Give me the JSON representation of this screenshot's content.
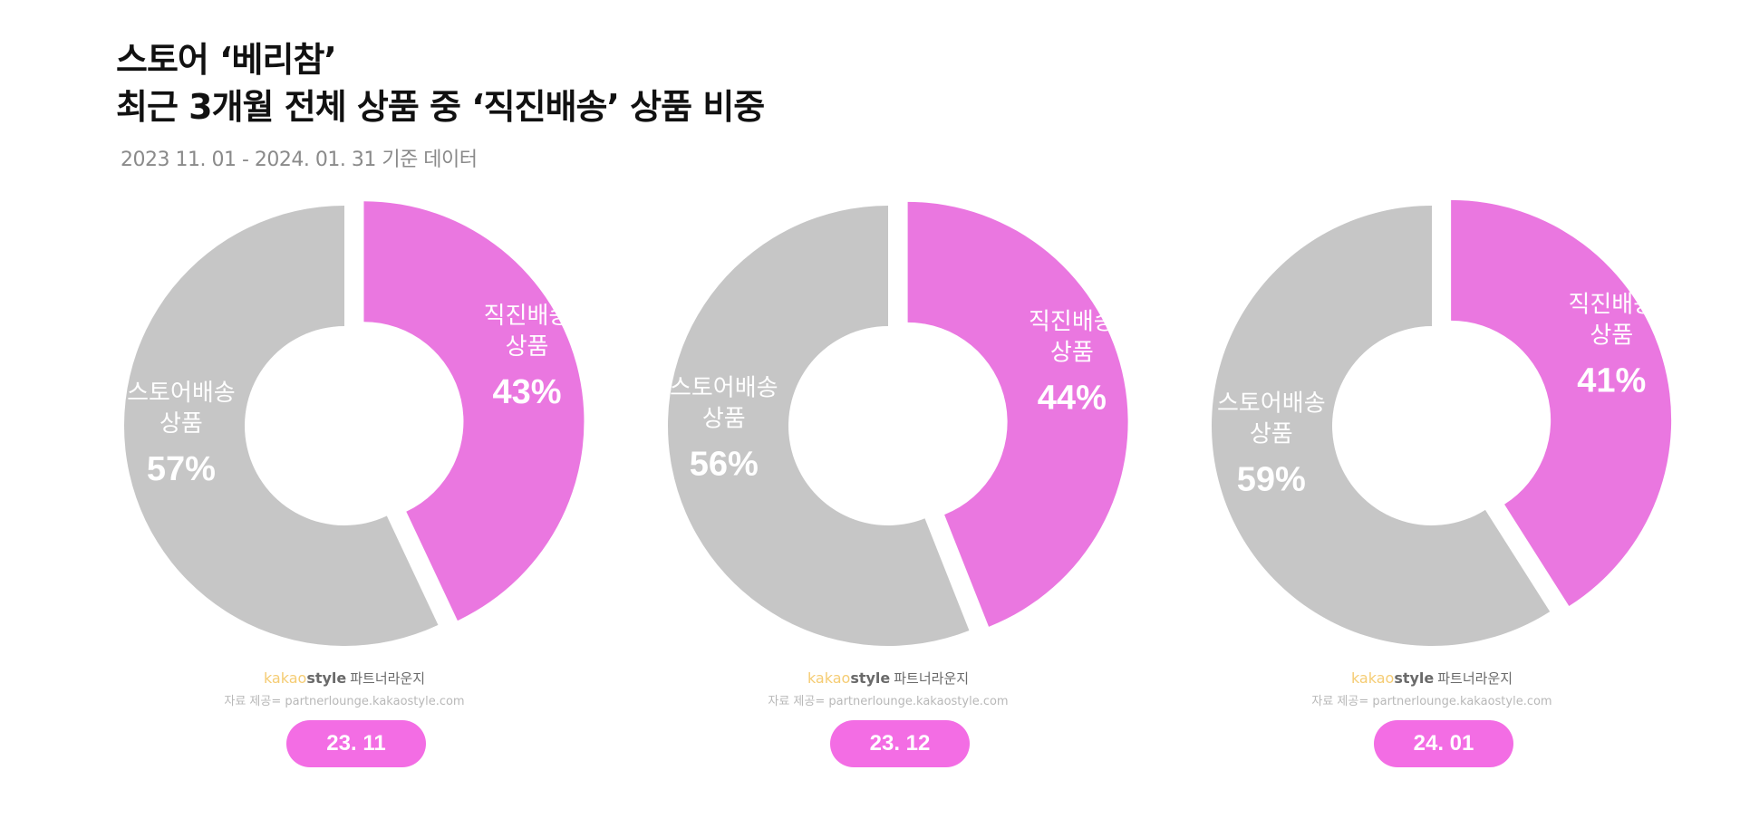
{
  "title": {
    "line1": "스토어 ‘베리참’",
    "line2": "최근 3개월 전체 상품 중 ‘직진배송’ 상품 비중"
  },
  "subtitle": "2023 11. 01 - 2024. 01. 31 기준 데이터",
  "colors": {
    "direct": "#ea77e0",
    "store": "#c6c6c6",
    "pill": "#f36de4"
  },
  "footer": {
    "brand_kakao": "kakao",
    "brand_style": "style",
    "brand_lounge": "파트너라운지",
    "source": "자료 제공= partnerlounge.kakaostyle.com"
  },
  "chart_data": [
    {
      "type": "pie",
      "period": "23. 11",
      "slices": [
        {
          "label_line1": "직진배송",
          "label_line2": "상품",
          "value": 43,
          "value_label": "43%",
          "color": "#ea77e0"
        },
        {
          "label_line1": "스토어배송",
          "label_line2": "상품",
          "value": 57,
          "value_label": "57%",
          "color": "#c6c6c6"
        }
      ]
    },
    {
      "type": "pie",
      "period": "23. 12",
      "slices": [
        {
          "label_line1": "직진배송",
          "label_line2": "상품",
          "value": 44,
          "value_label": "44%",
          "color": "#ea77e0"
        },
        {
          "label_line1": "스토어배송",
          "label_line2": "상품",
          "value": 56,
          "value_label": "56%",
          "color": "#c6c6c6"
        }
      ]
    },
    {
      "type": "pie",
      "period": "24. 01",
      "slices": [
        {
          "label_line1": "직진배송",
          "label_line2": "상품",
          "value": 41,
          "value_label": "41%",
          "color": "#ea77e0"
        },
        {
          "label_line1": "스토어배송",
          "label_line2": "상품",
          "value": 59,
          "value_label": "59%",
          "color": "#c6c6c6"
        }
      ]
    }
  ]
}
